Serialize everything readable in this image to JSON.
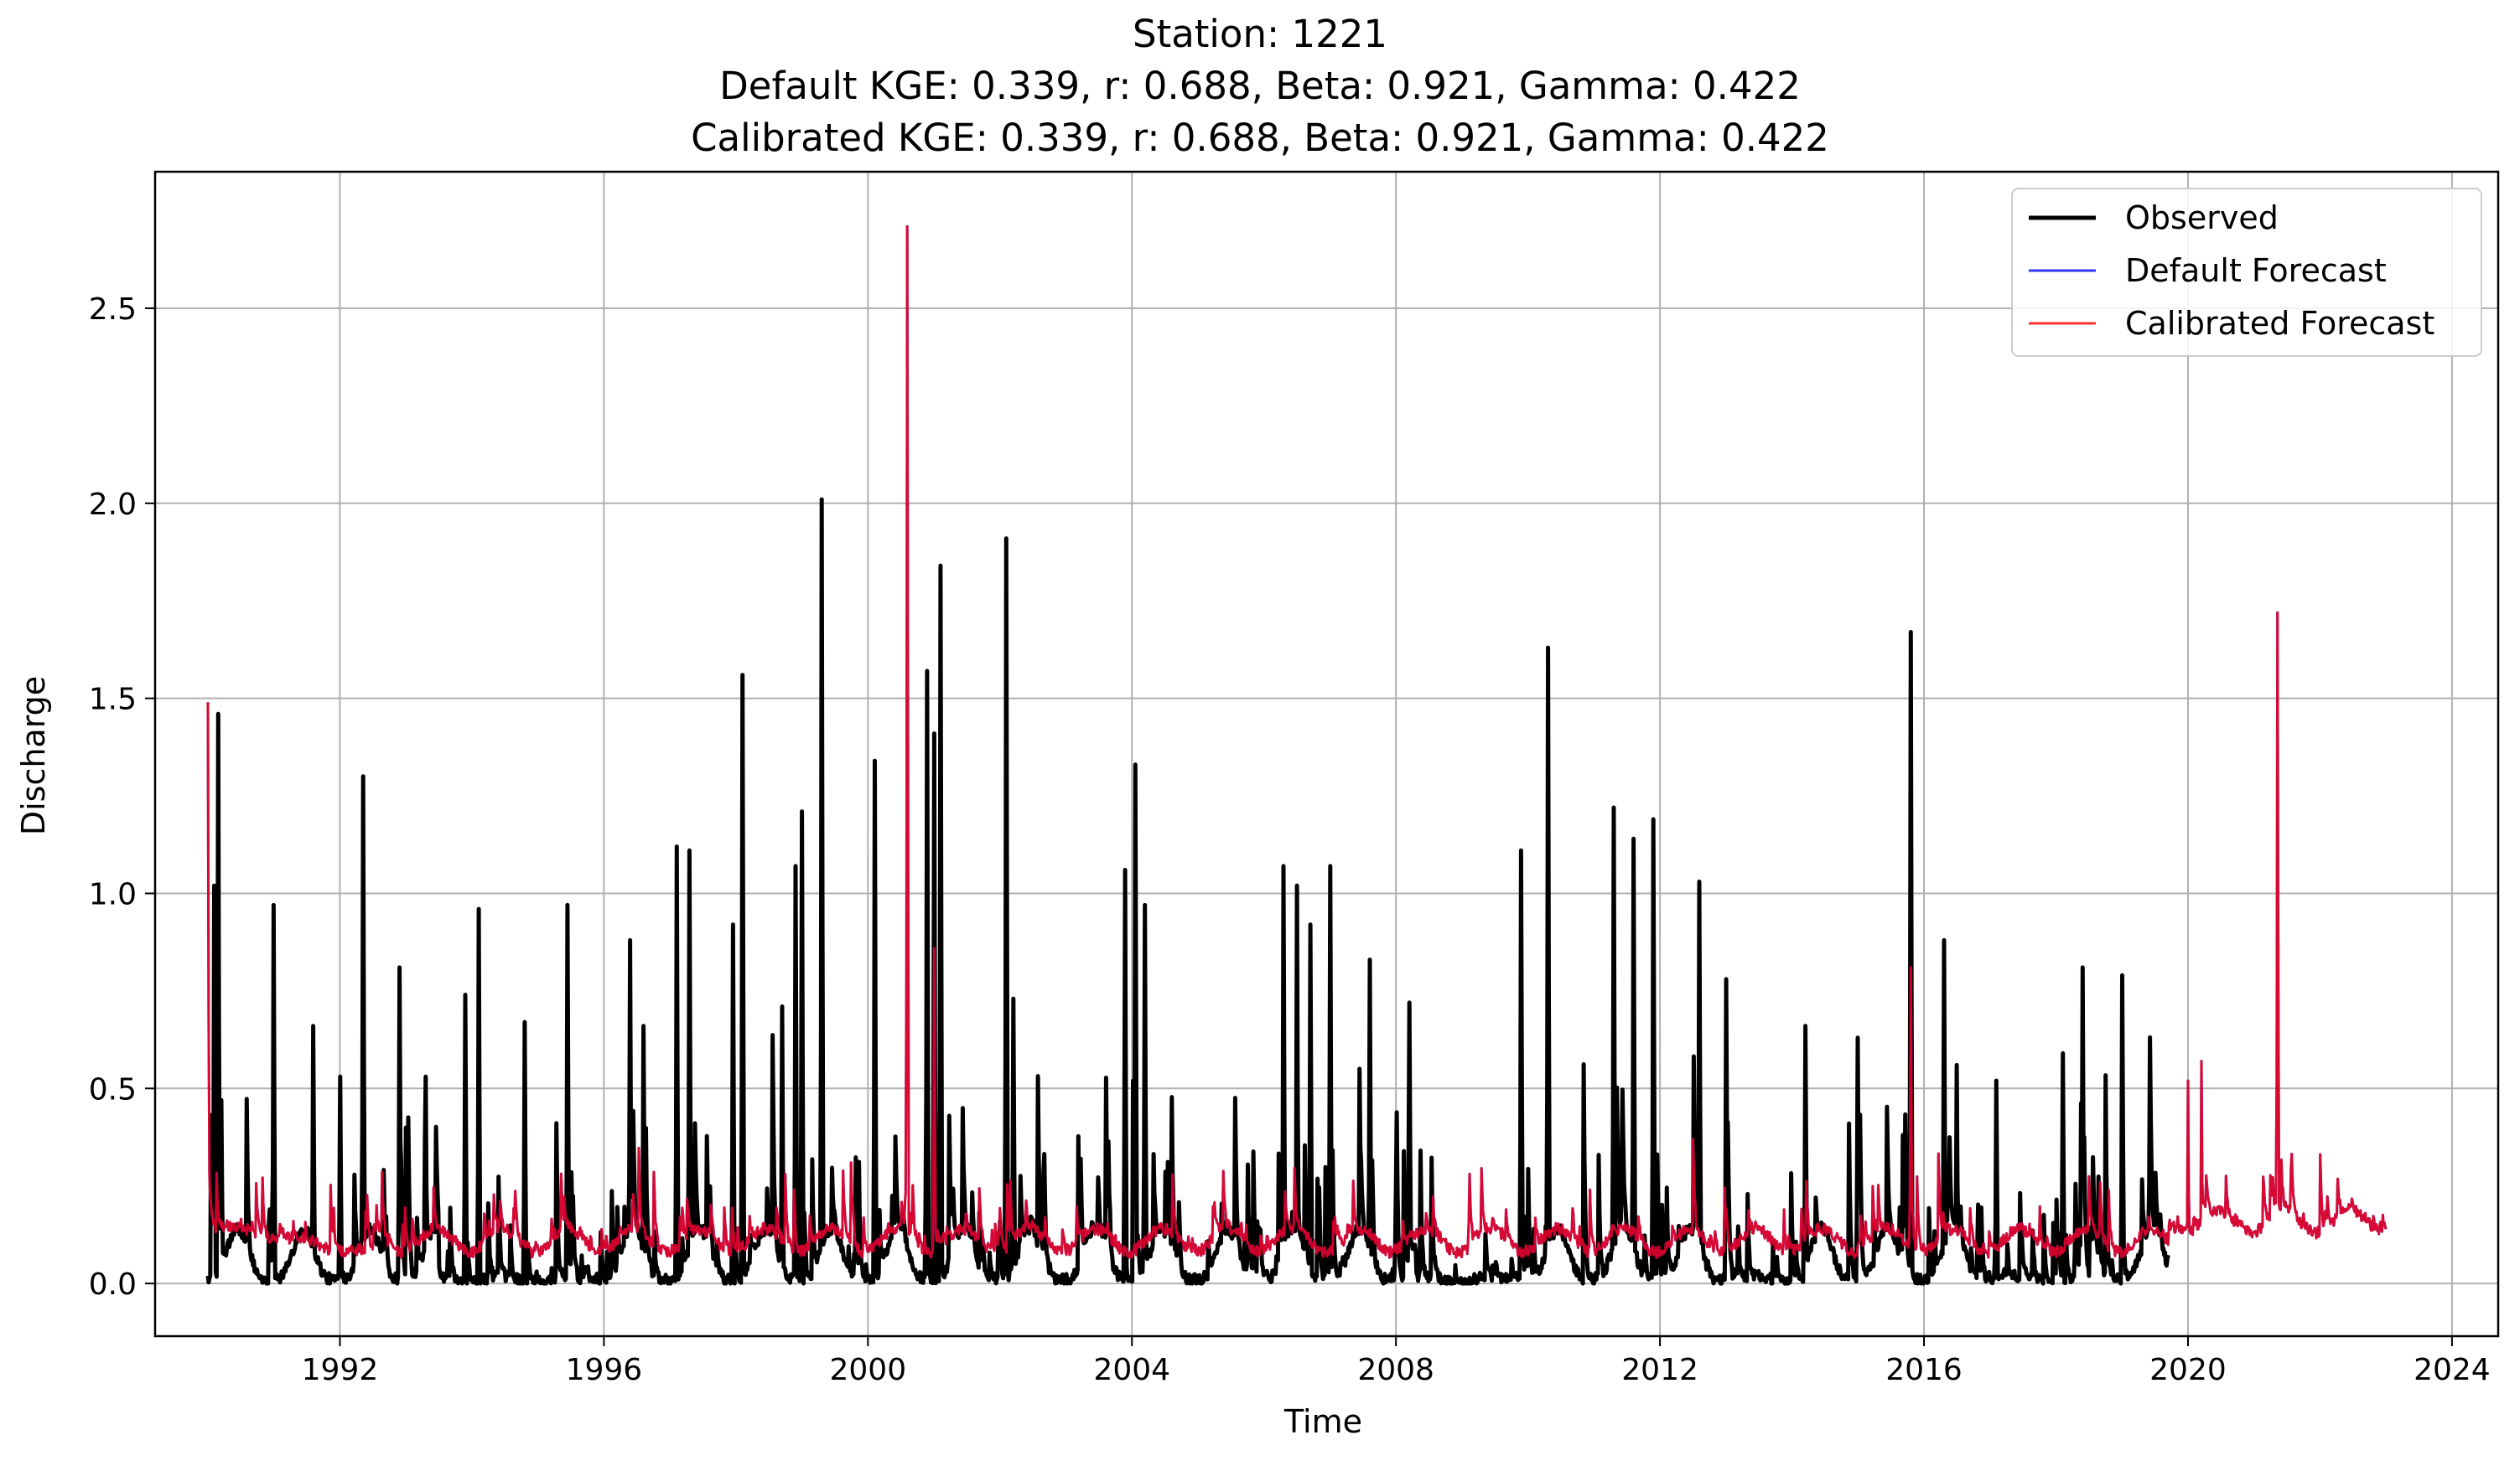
{
  "chart_data": {
    "type": "line",
    "title": [
      "Station: 1221",
      "Default KGE: 0.339, r: 0.688, Beta: 0.921, Gamma: 0.422",
      "Calibrated KGE: 0.339, r: 0.688, Beta: 0.921, Gamma: 0.422"
    ],
    "xlabel": "Time",
    "ylabel": "Discharge",
    "xlim": [
      1989.2,
      2024.7
    ],
    "ylim": [
      -0.135,
      2.85
    ],
    "xticks": [
      1992,
      1996,
      2000,
      2004,
      2008,
      2012,
      2016,
      2020,
      2024
    ],
    "yticks": [
      0.0,
      0.5,
      1.0,
      1.5,
      2.0,
      2.5
    ],
    "ytick_labels": [
      "0.0",
      "0.5",
      "1.0",
      "1.5",
      "2.0",
      "2.5"
    ],
    "grid": true,
    "legend_position": "top-right",
    "observed_range": [
      1990.0,
      2019.7
    ],
    "forecast_range": [
      1990.0,
      2023.0
    ],
    "series": [
      {
        "name": "Observed",
        "color": "#000000",
        "baseline": "seasonal low flow 0.0-0.15",
        "peaks": [
          [
            1990.15,
            1.46
          ],
          [
            1990.1,
            1.02
          ],
          [
            1990.2,
            0.47
          ],
          [
            1991.0,
            0.97
          ],
          [
            1991.6,
            0.66
          ],
          [
            1992.0,
            0.53
          ],
          [
            1992.35,
            1.3
          ],
          [
            1992.9,
            0.81
          ],
          [
            1993.3,
            0.53
          ],
          [
            1993.9,
            0.74
          ],
          [
            1994.1,
            0.96
          ],
          [
            1994.8,
            0.67
          ],
          [
            1995.45,
            0.97
          ],
          [
            1996.4,
            0.88
          ],
          [
            1996.6,
            0.66
          ],
          [
            1997.1,
            1.12
          ],
          [
            1997.3,
            1.11
          ],
          [
            1997.95,
            0.92
          ],
          [
            1998.1,
            1.56
          ],
          [
            1998.7,
            0.71
          ],
          [
            1998.9,
            1.07
          ],
          [
            1999.0,
            1.21
          ],
          [
            1999.3,
            2.01
          ],
          [
            2000.1,
            1.34
          ],
          [
            2000.9,
            1.57
          ],
          [
            2001.0,
            1.41
          ],
          [
            2001.1,
            1.84
          ],
          [
            2002.1,
            1.91
          ],
          [
            2002.2,
            0.73
          ],
          [
            2003.9,
            1.06
          ],
          [
            2004.05,
            1.33
          ],
          [
            2004.2,
            0.97
          ],
          [
            2006.3,
            1.07
          ],
          [
            2006.5,
            1.02
          ],
          [
            2006.7,
            0.92
          ],
          [
            2007.0,
            1.07
          ],
          [
            2007.6,
            0.83
          ],
          [
            2008.2,
            0.72
          ],
          [
            2009.9,
            1.11
          ],
          [
            2010.3,
            1.63
          ],
          [
            2011.3,
            1.22
          ],
          [
            2011.6,
            1.14
          ],
          [
            2011.9,
            1.19
          ],
          [
            2012.6,
            1.03
          ],
          [
            2013.0,
            0.78
          ],
          [
            2014.2,
            0.66
          ],
          [
            2015.0,
            0.63
          ],
          [
            2015.8,
            1.67
          ],
          [
            2016.3,
            0.88
          ],
          [
            2016.5,
            0.56
          ],
          [
            2017.1,
            0.52
          ],
          [
            2018.1,
            0.59
          ],
          [
            2018.4,
            0.81
          ],
          [
            2019.0,
            0.79
          ]
        ]
      },
      {
        "name": "Default Forecast",
        "color": "#0000ff",
        "baseline": "0.05-0.2",
        "peaks": [
          [
            1990.0,
            1.49
          ],
          [
            2000.6,
            2.71
          ],
          [
            2001.0,
            0.86
          ],
          [
            2015.8,
            0.81
          ],
          [
            2020.0,
            0.52
          ],
          [
            2020.2,
            0.57
          ],
          [
            2021.35,
            1.72
          ]
        ]
      },
      {
        "name": "Calibrated Forecast",
        "color": "#ff0000",
        "baseline": "0.05-0.2",
        "peaks": [
          [
            1990.0,
            1.49
          ],
          [
            2000.6,
            2.71
          ],
          [
            2001.0,
            0.86
          ],
          [
            2015.8,
            0.81
          ],
          [
            2020.0,
            0.52
          ],
          [
            2020.2,
            0.57
          ],
          [
            2021.35,
            1.72
          ]
        ]
      }
    ]
  }
}
